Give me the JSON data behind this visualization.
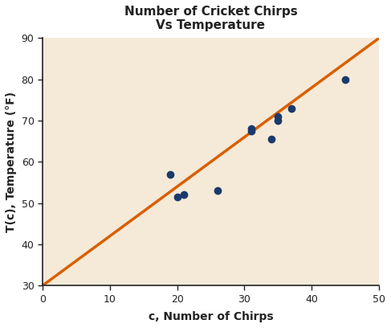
{
  "title": "Number of Cricket Chirps\nVs Temperature",
  "xlabel": "c, Number of Chirps",
  "ylabel": "T(c), Temperature (°F)",
  "scatter_x": [
    19,
    20,
    21,
    26,
    31,
    31,
    34,
    35,
    35,
    37,
    45
  ],
  "scatter_y": [
    57,
    51.5,
    52,
    53,
    67.5,
    68,
    65.5,
    71,
    70,
    73,
    80
  ],
  "scatter_color": "#1a3a6b",
  "line_x0": 0,
  "line_y0": 30,
  "line_x1": 50,
  "line_y1": 90,
  "line_color": "#d95f02",
  "line_width": 2.5,
  "xlim": [
    0,
    50
  ],
  "ylim": [
    30,
    90
  ],
  "xticks": [
    0,
    10,
    20,
    30,
    40,
    50
  ],
  "yticks": [
    30,
    40,
    50,
    60,
    70,
    80,
    90
  ],
  "bg_color": "#f5ead8",
  "fig_bg_color": "#ffffff",
  "title_fontsize": 11,
  "label_fontsize": 10,
  "tick_fontsize": 9,
  "marker_size": 36
}
